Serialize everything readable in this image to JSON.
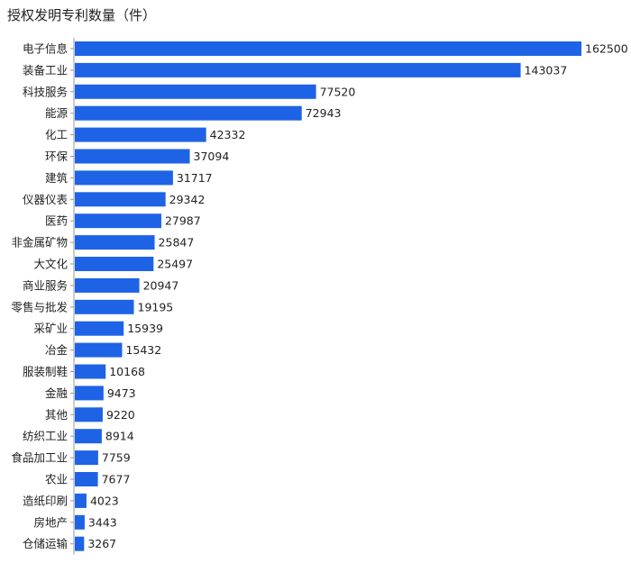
{
  "chart_data": {
    "type": "bar",
    "orientation": "horizontal",
    "title": "授权发明专利数量（件）",
    "categories": [
      "电子信息",
      "装备工业",
      "科技服务",
      "能源",
      "化工",
      "环保",
      "建筑",
      "仪器仪表",
      "医药",
      "非金属矿物",
      "大文化",
      "商业服务",
      "零售与批发",
      "采矿业",
      "冶金",
      "服装制鞋",
      "金融",
      "其他",
      "纺织工业",
      "食品加工业",
      "农业",
      "造纸印刷",
      "房地产",
      "仓储运输"
    ],
    "values": [
      162500,
      143037,
      77520,
      72943,
      42332,
      37094,
      31717,
      29342,
      27987,
      25847,
      25497,
      20947,
      19195,
      15939,
      15432,
      10168,
      9473,
      9220,
      8914,
      7759,
      7677,
      4023,
      3443,
      3267
    ],
    "xlim": [
      0,
      162500
    ],
    "grid": false,
    "legend": "none",
    "data_labels": true,
    "colors": {
      "bar": "#1E63E6",
      "axis": "#999999",
      "text": "#222222"
    }
  }
}
